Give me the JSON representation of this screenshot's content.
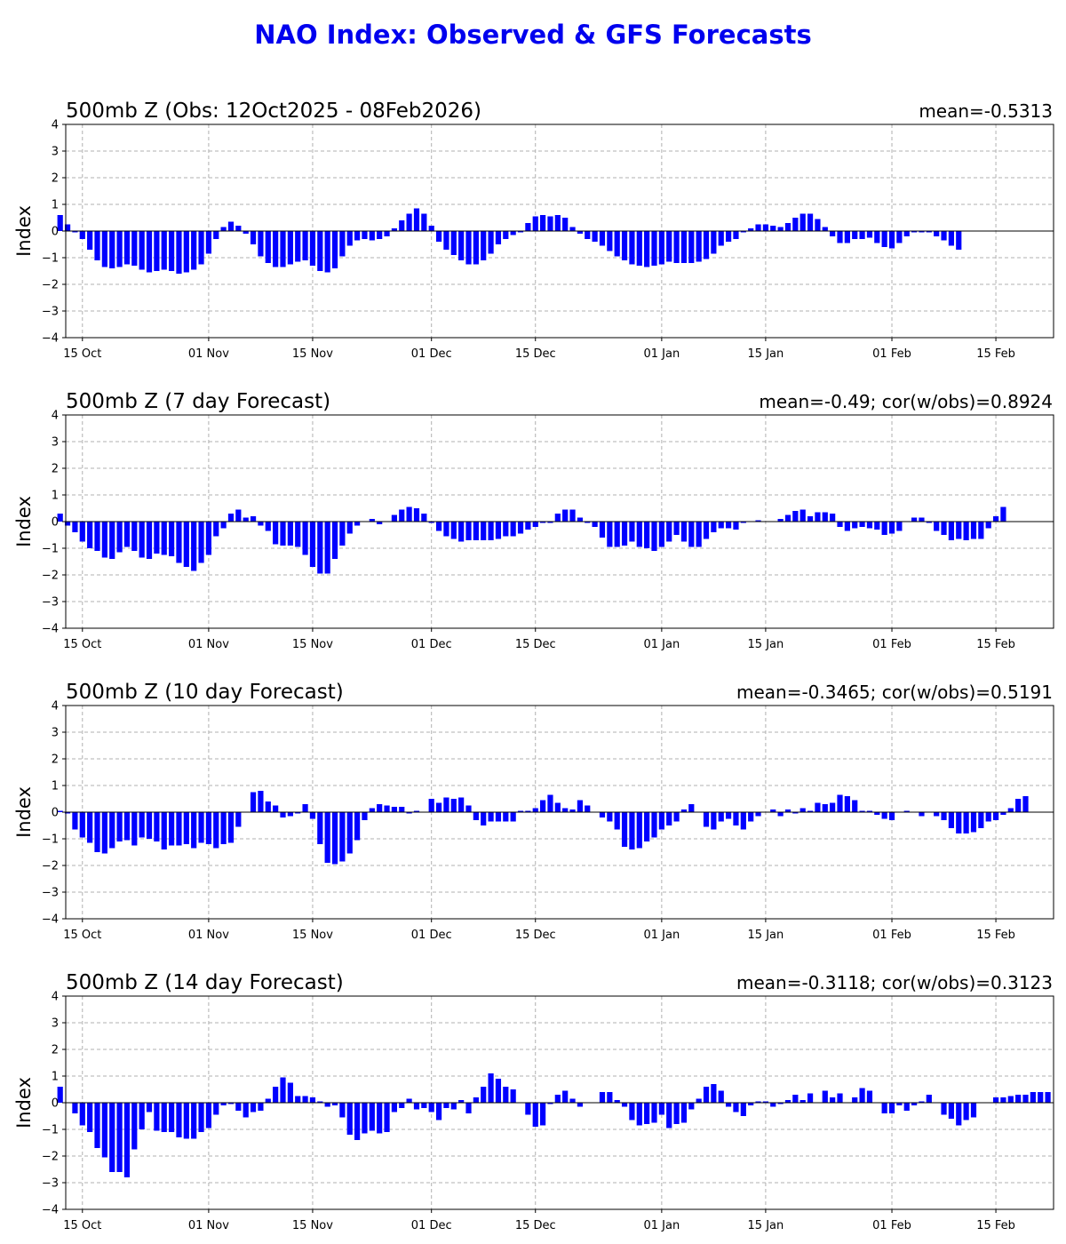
{
  "title": "NAO Index: Observed & GFS Forecasts",
  "colors": {
    "title": "#0000ee",
    "bars": "#0000ff",
    "grid": "#b0b0b0"
  },
  "chart_data": [
    {
      "type": "bar",
      "title": "500mb Z (Obs: 12Oct2025 - 08Feb2026)",
      "stat": "mean=-0.5313",
      "ylabel": "Index",
      "ylim": [
        -4,
        4
      ],
      "yticks": [
        "−4",
        "−3",
        "−2",
        "−1",
        "0",
        "1",
        "2",
        "3",
        "4"
      ],
      "xtick_labels": [
        "15 Oct",
        "01 Nov",
        "15 Nov",
        "01 Dec",
        "15 Dec",
        "01 Jan",
        "15 Jan",
        "01 Feb",
        "15 Feb"
      ],
      "start_date": "2025-10-12",
      "grid": true,
      "values": [
        0.6,
        0.25,
        -0.05,
        -0.3,
        -0.7,
        -1.1,
        -1.35,
        -1.4,
        -1.35,
        -1.25,
        -1.3,
        -1.45,
        -1.55,
        -1.5,
        -1.45,
        -1.5,
        -1.6,
        -1.55,
        -1.45,
        -1.25,
        -0.85,
        -0.3,
        0.15,
        0.35,
        0.2,
        -0.1,
        -0.5,
        -0.95,
        -1.2,
        -1.35,
        -1.35,
        -1.25,
        -1.15,
        -1.1,
        -1.3,
        -1.5,
        -1.55,
        -1.4,
        -0.95,
        -0.55,
        -0.35,
        -0.3,
        -0.35,
        -0.3,
        -0.2,
        0.1,
        0.4,
        0.65,
        0.85,
        0.65,
        0.2,
        -0.4,
        -0.7,
        -0.9,
        -1.1,
        -1.25,
        -1.25,
        -1.1,
        -0.85,
        -0.5,
        -0.3,
        -0.15,
        -0.05,
        0.3,
        0.55,
        0.6,
        0.55,
        0.6,
        0.5,
        0.15,
        -0.1,
        -0.3,
        -0.4,
        -0.55,
        -0.75,
        -0.95,
        -1.1,
        -1.25,
        -1.3,
        -1.35,
        -1.3,
        -1.25,
        -1.15,
        -1.2,
        -1.2,
        -1.2,
        -1.15,
        -1.05,
        -0.85,
        -0.55,
        -0.4,
        -0.3,
        -0.05,
        0.1,
        0.25,
        0.25,
        0.2,
        0.15,
        0.3,
        0.5,
        0.65,
        0.65,
        0.45,
        0.15,
        -0.2,
        -0.45,
        -0.45,
        -0.3,
        -0.3,
        -0.25,
        -0.45,
        -0.6,
        -0.65,
        -0.45,
        -0.2,
        -0.05,
        -0.05,
        -0.05,
        -0.2,
        -0.35,
        -0.55,
        -0.7
      ]
    },
    {
      "type": "bar",
      "title": "500mb Z (7 day Forecast)",
      "stat": "mean=-0.49; cor(w/obs)=0.8924",
      "ylabel": "Index",
      "ylim": [
        -4,
        4
      ],
      "yticks": [
        "−4",
        "−3",
        "−2",
        "−1",
        "0",
        "1",
        "2",
        "3",
        "4"
      ],
      "xtick_labels": [
        "15 Oct",
        "01 Nov",
        "15 Nov",
        "01 Dec",
        "15 Dec",
        "01 Jan",
        "15 Jan",
        "01 Feb",
        "15 Feb"
      ],
      "start_date": "2025-10-12",
      "grid": true,
      "values": [
        0.3,
        -0.15,
        -0.4,
        -0.75,
        -1.0,
        -1.1,
        -1.35,
        -1.4,
        -1.15,
        -0.95,
        -1.1,
        -1.35,
        -1.4,
        -1.2,
        -1.25,
        -1.3,
        -1.55,
        -1.7,
        -1.85,
        -1.55,
        -1.25,
        -0.55,
        -0.25,
        0.3,
        0.45,
        0.15,
        0.2,
        -0.15,
        -0.35,
        -0.85,
        -0.9,
        -0.9,
        -0.95,
        -1.25,
        -1.7,
        -1.95,
        -1.95,
        -1.4,
        -0.9,
        -0.45,
        -0.15,
        0.0,
        0.1,
        -0.1,
        0.0,
        0.25,
        0.45,
        0.55,
        0.5,
        0.3,
        -0.05,
        -0.35,
        -0.55,
        -0.65,
        -0.75,
        -0.7,
        -0.7,
        -0.7,
        -0.7,
        -0.65,
        -0.55,
        -0.55,
        -0.45,
        -0.3,
        -0.2,
        -0.05,
        -0.05,
        0.3,
        0.45,
        0.45,
        0.15,
        -0.05,
        -0.2,
        -0.6,
        -0.95,
        -0.95,
        -0.9,
        -0.75,
        -0.95,
        -1.0,
        -1.1,
        -0.95,
        -0.75,
        -0.5,
        -0.75,
        -0.95,
        -0.95,
        -0.65,
        -0.4,
        -0.25,
        -0.25,
        -0.3,
        -0.05,
        0.0,
        0.05,
        0.0,
        0.0,
        0.1,
        0.25,
        0.4,
        0.45,
        0.2,
        0.35,
        0.35,
        0.3,
        -0.2,
        -0.35,
        -0.25,
        -0.2,
        -0.25,
        -0.3,
        -0.5,
        -0.45,
        -0.35,
        0.0,
        0.15,
        0.15,
        -0.05,
        -0.35,
        -0.5,
        -0.7,
        -0.65,
        -0.7,
        -0.65,
        -0.65,
        -0.25,
        0.2,
        0.55
      ]
    },
    {
      "type": "bar",
      "title": "500mb Z (10 day Forecast)",
      "stat": "mean=-0.3465; cor(w/obs)=0.5191",
      "ylabel": "Index",
      "ylim": [
        -4,
        4
      ],
      "yticks": [
        "−4",
        "−3",
        "−2",
        "−1",
        "0",
        "1",
        "2",
        "3",
        "4"
      ],
      "xtick_labels": [
        "15 Oct",
        "01 Nov",
        "15 Nov",
        "01 Dec",
        "15 Dec",
        "01 Jan",
        "15 Jan",
        "01 Feb",
        "15 Feb"
      ],
      "start_date": "2025-10-12",
      "grid": true,
      "values": [
        0.05,
        -0.05,
        -0.65,
        -0.95,
        -1.15,
        -1.5,
        -1.55,
        -1.35,
        -1.1,
        -1.05,
        -1.25,
        -0.95,
        -1.0,
        -1.1,
        -1.4,
        -1.25,
        -1.25,
        -1.2,
        -1.35,
        -1.15,
        -1.2,
        -1.35,
        -1.2,
        -1.15,
        -0.55,
        0.0,
        0.75,
        0.8,
        0.4,
        0.25,
        -0.2,
        -0.15,
        -0.05,
        0.3,
        -0.25,
        -1.2,
        -1.9,
        -1.95,
        -1.85,
        -1.55,
        -1.05,
        -0.3,
        0.15,
        0.3,
        0.25,
        0.2,
        0.2,
        -0.05,
        0.05,
        0.0,
        0.5,
        0.35,
        0.55,
        0.5,
        0.55,
        0.25,
        -0.3,
        -0.5,
        -0.35,
        -0.35,
        -0.35,
        -0.35,
        0.05,
        0.05,
        0.15,
        0.45,
        0.65,
        0.35,
        0.15,
        0.1,
        0.45,
        0.25,
        0.0,
        -0.2,
        -0.35,
        -0.65,
        -1.3,
        -1.4,
        -1.35,
        -1.1,
        -0.95,
        -0.65,
        -0.5,
        -0.35,
        0.1,
        0.3,
        0.0,
        -0.55,
        -0.65,
        -0.35,
        -0.25,
        -0.5,
        -0.65,
        -0.35,
        -0.15,
        0.0,
        0.1,
        -0.15,
        0.1,
        -0.05,
        0.15,
        0.05,
        0.35,
        0.3,
        0.35,
        0.65,
        0.6,
        0.45,
        0.05,
        0.05,
        -0.1,
        -0.25,
        -0.3,
        0.0,
        0.05,
        0.0,
        -0.15,
        0.0,
        -0.15,
        -0.3,
        -0.6,
        -0.8,
        -0.8,
        -0.75,
        -0.6,
        -0.35,
        -0.3,
        -0.1,
        0.15,
        0.5,
        0.6
      ]
    },
    {
      "type": "bar",
      "title": "500mb Z (14 day Forecast)",
      "stat": "mean=-0.3118; cor(w/obs)=0.3123",
      "ylabel": "Index",
      "ylim": [
        -4,
        4
      ],
      "yticks": [
        "−4",
        "−3",
        "−2",
        "−1",
        "0",
        "1",
        "2",
        "3",
        "4"
      ],
      "xtick_labels": [
        "15 Oct",
        "01 Nov",
        "15 Nov",
        "01 Dec",
        "15 Dec",
        "01 Jan",
        "15 Jan",
        "01 Feb",
        "15 Feb"
      ],
      "start_date": "2025-10-12",
      "grid": true,
      "values": [
        0.6,
        0.0,
        -0.4,
        -0.85,
        -1.1,
        -1.7,
        -2.05,
        -2.6,
        -2.6,
        -2.8,
        -1.75,
        -1.0,
        -0.35,
        -1.05,
        -1.1,
        -1.1,
        -1.3,
        -1.35,
        -1.35,
        -1.1,
        -0.95,
        -0.45,
        -0.1,
        -0.05,
        -0.3,
        -0.55,
        -0.35,
        -0.3,
        0.15,
        0.6,
        0.95,
        0.75,
        0.25,
        0.25,
        0.2,
        0.05,
        -0.15,
        -0.1,
        -0.55,
        -1.2,
        -1.4,
        -1.15,
        -1.05,
        -1.15,
        -1.1,
        -0.35,
        -0.2,
        0.15,
        -0.25,
        -0.2,
        -0.35,
        -0.65,
        -0.2,
        -0.25,
        0.1,
        -0.4,
        0.2,
        0.6,
        1.1,
        0.9,
        0.6,
        0.5,
        0.0,
        -0.45,
        -0.9,
        -0.85,
        -0.05,
        0.3,
        0.45,
        0.15,
        -0.15,
        0.0,
        0.0,
        0.4,
        0.4,
        0.1,
        -0.15,
        -0.65,
        -0.85,
        -0.8,
        -0.75,
        -0.45,
        -0.95,
        -0.8,
        -0.75,
        -0.25,
        0.15,
        0.6,
        0.7,
        0.45,
        -0.15,
        -0.35,
        -0.5,
        -0.1,
        0.05,
        0.05,
        -0.15,
        -0.05,
        0.1,
        0.3,
        0.1,
        0.35,
        0.0,
        0.45,
        0.2,
        0.35,
        0.0,
        0.2,
        0.55,
        0.45,
        0.0,
        -0.4,
        -0.4,
        -0.1,
        -0.3,
        -0.1,
        0.05,
        0.3,
        0.0,
        -0.45,
        -0.6,
        -0.85,
        -0.65,
        -0.55,
        0.0,
        0.0,
        0.2,
        0.2,
        0.25,
        0.3,
        0.3,
        0.4,
        0.4,
        0.4
      ]
    }
  ]
}
